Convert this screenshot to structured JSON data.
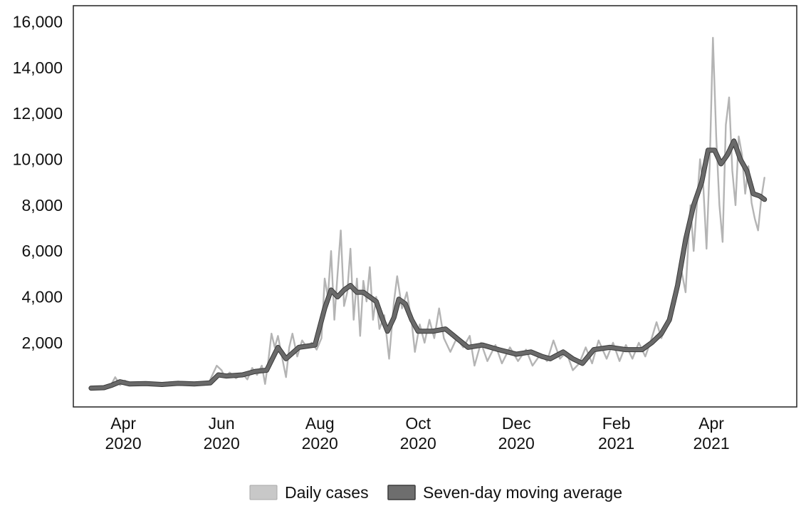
{
  "chart_data": {
    "type": "line",
    "title": "",
    "xlabel": "",
    "ylabel": "",
    "x_ticks": [
      {
        "date": "2020-04-01",
        "line1": "Apr",
        "line2": "2020"
      },
      {
        "date": "2020-06-01",
        "line1": "Jun",
        "line2": "2020"
      },
      {
        "date": "2020-08-01",
        "line1": "Aug",
        "line2": "2020"
      },
      {
        "date": "2020-10-01",
        "line1": "Oct",
        "line2": "2020"
      },
      {
        "date": "2020-12-01",
        "line1": "Dec",
        "line2": "2020"
      },
      {
        "date": "2021-02-01",
        "line1": "Feb",
        "line2": "2021"
      },
      {
        "date": "2021-04-01",
        "line1": "Apr",
        "line2": "2021"
      }
    ],
    "y_ticks": [
      {
        "value": 2000,
        "label": "2,000"
      },
      {
        "value": 4000,
        "label": "4,000"
      },
      {
        "value": 6000,
        "label": "6,000"
      },
      {
        "value": 8000,
        "label": "8,000"
      },
      {
        "value": 10000,
        "label": "10,000"
      },
      {
        "value": 12000,
        "label": "12,000"
      },
      {
        "value": 14000,
        "label": "14,000"
      },
      {
        "value": 16000,
        "label": "16,000"
      }
    ],
    "xlim": [
      "2020-03-01",
      "2021-05-24"
    ],
    "ylim": [
      -800,
      16700
    ],
    "grid": false,
    "legend_position": "bottom",
    "series": [
      {
        "name": "Daily cases",
        "color": "#b4b4b4",
        "points": [
          [
            "2020-03-12",
            10
          ],
          [
            "2020-03-18",
            30
          ],
          [
            "2020-03-24",
            100
          ],
          [
            "2020-03-27",
            500
          ],
          [
            "2020-03-30",
            150
          ],
          [
            "2020-04-02",
            350
          ],
          [
            "2020-04-05",
            200
          ],
          [
            "2020-04-10",
            280
          ],
          [
            "2020-04-18",
            250
          ],
          [
            "2020-04-26",
            250
          ],
          [
            "2020-05-05",
            300
          ],
          [
            "2020-05-15",
            280
          ],
          [
            "2020-05-24",
            250
          ],
          [
            "2020-05-29",
            1000
          ],
          [
            "2020-06-01",
            800
          ],
          [
            "2020-06-03",
            500
          ],
          [
            "2020-06-06",
            700
          ],
          [
            "2020-06-10",
            450
          ],
          [
            "2020-06-14",
            650
          ],
          [
            "2020-06-17",
            400
          ],
          [
            "2020-06-20",
            900
          ],
          [
            "2020-06-23",
            600
          ],
          [
            "2020-06-26",
            1000
          ],
          [
            "2020-06-28",
            200
          ],
          [
            "2020-06-30",
            1200
          ],
          [
            "2020-07-02",
            2400
          ],
          [
            "2020-07-04",
            1800
          ],
          [
            "2020-07-06",
            2300
          ],
          [
            "2020-07-09",
            1200
          ],
          [
            "2020-07-11",
            500
          ],
          [
            "2020-07-13",
            1800
          ],
          [
            "2020-07-15",
            2400
          ],
          [
            "2020-07-18",
            1400
          ],
          [
            "2020-07-21",
            2100
          ],
          [
            "2020-07-24",
            1800
          ],
          [
            "2020-07-27",
            2000
          ],
          [
            "2020-07-30",
            1700
          ],
          [
            "2020-08-02",
            2200
          ],
          [
            "2020-08-04",
            4800
          ],
          [
            "2020-08-06",
            4000
          ],
          [
            "2020-08-08",
            6000
          ],
          [
            "2020-08-10",
            3000
          ],
          [
            "2020-08-12",
            5000
          ],
          [
            "2020-08-14",
            6900
          ],
          [
            "2020-08-16",
            3600
          ],
          [
            "2020-08-18",
            4200
          ],
          [
            "2020-08-20",
            6100
          ],
          [
            "2020-08-22",
            3000
          ],
          [
            "2020-08-24",
            4800
          ],
          [
            "2020-08-26",
            2300
          ],
          [
            "2020-08-28",
            4700
          ],
          [
            "2020-08-30",
            3800
          ],
          [
            "2020-09-01",
            5300
          ],
          [
            "2020-09-03",
            3000
          ],
          [
            "2020-09-05",
            4000
          ],
          [
            "2020-09-07",
            2600
          ],
          [
            "2020-09-10",
            3200
          ],
          [
            "2020-09-13",
            1300
          ],
          [
            "2020-09-16",
            3800
          ],
          [
            "2020-09-18",
            4900
          ],
          [
            "2020-09-21",
            3500
          ],
          [
            "2020-09-24",
            4200
          ],
          [
            "2020-09-27",
            2900
          ],
          [
            "2020-09-29",
            1600
          ],
          [
            "2020-10-02",
            2800
          ],
          [
            "2020-10-05",
            2000
          ],
          [
            "2020-10-08",
            3000
          ],
          [
            "2020-10-11",
            2200
          ],
          [
            "2020-10-14",
            3500
          ],
          [
            "2020-10-17",
            2200
          ],
          [
            "2020-10-21",
            1600
          ],
          [
            "2020-10-25",
            2200
          ],
          [
            "2020-10-29",
            1800
          ],
          [
            "2020-11-02",
            2300
          ],
          [
            "2020-11-05",
            1000
          ],
          [
            "2020-11-09",
            2000
          ],
          [
            "2020-11-13",
            1200
          ],
          [
            "2020-11-18",
            1900
          ],
          [
            "2020-11-22",
            1100
          ],
          [
            "2020-11-27",
            1800
          ],
          [
            "2020-12-02",
            1200
          ],
          [
            "2020-12-07",
            1700
          ],
          [
            "2020-12-11",
            1000
          ],
          [
            "2020-12-16",
            1500
          ],
          [
            "2020-12-20",
            1200
          ],
          [
            "2020-12-24",
            2100
          ],
          [
            "2020-12-28",
            1300
          ],
          [
            "2021-01-01",
            1600
          ],
          [
            "2021-01-05",
            800
          ],
          [
            "2021-01-09",
            1100
          ],
          [
            "2021-01-13",
            1800
          ],
          [
            "2021-01-17",
            1100
          ],
          [
            "2021-01-21",
            2100
          ],
          [
            "2021-01-26",
            1300
          ],
          [
            "2021-01-30",
            2000
          ],
          [
            "2021-02-03",
            1200
          ],
          [
            "2021-02-07",
            1900
          ],
          [
            "2021-02-11",
            1300
          ],
          [
            "2021-02-15",
            2000
          ],
          [
            "2021-02-19",
            1400
          ],
          [
            "2021-02-23",
            2200
          ],
          [
            "2021-02-26",
            2900
          ],
          [
            "2021-03-01",
            2200
          ],
          [
            "2021-03-04",
            2800
          ],
          [
            "2021-03-07",
            3500
          ],
          [
            "2021-03-10",
            4500
          ],
          [
            "2021-03-13",
            5300
          ],
          [
            "2021-03-16",
            4200
          ],
          [
            "2021-03-19",
            8000
          ],
          [
            "2021-03-21",
            6000
          ],
          [
            "2021-03-23",
            8000
          ],
          [
            "2021-03-25",
            10000
          ],
          [
            "2021-03-27",
            8800
          ],
          [
            "2021-03-29",
            6100
          ],
          [
            "2021-03-31",
            9800
          ],
          [
            "2021-04-02",
            15300
          ],
          [
            "2021-04-04",
            11000
          ],
          [
            "2021-04-06",
            8000
          ],
          [
            "2021-04-08",
            6400
          ],
          [
            "2021-04-10",
            11500
          ],
          [
            "2021-04-12",
            12700
          ],
          [
            "2021-04-14",
            9500
          ],
          [
            "2021-04-16",
            8000
          ],
          [
            "2021-04-18",
            11000
          ],
          [
            "2021-04-20",
            10200
          ],
          [
            "2021-04-22",
            8500
          ],
          [
            "2021-04-24",
            9700
          ],
          [
            "2021-04-26",
            8100
          ],
          [
            "2021-04-28",
            7400
          ],
          [
            "2021-04-30",
            6900
          ],
          [
            "2021-05-02",
            8300
          ],
          [
            "2021-05-04",
            9200
          ]
        ]
      },
      {
        "name": "Seven-day moving average",
        "color": "#6a6a6a",
        "points": [
          [
            "2020-03-12",
            20
          ],
          [
            "2020-03-20",
            40
          ],
          [
            "2020-03-25",
            150
          ],
          [
            "2020-03-30",
            300
          ],
          [
            "2020-04-05",
            200
          ],
          [
            "2020-04-15",
            220
          ],
          [
            "2020-04-25",
            180
          ],
          [
            "2020-05-05",
            230
          ],
          [
            "2020-05-15",
            200
          ],
          [
            "2020-05-25",
            250
          ],
          [
            "2020-05-30",
            600
          ],
          [
            "2020-06-04",
            550
          ],
          [
            "2020-06-14",
            600
          ],
          [
            "2020-06-22",
            750
          ],
          [
            "2020-06-29",
            800
          ],
          [
            "2020-07-06",
            1800
          ],
          [
            "2020-07-11",
            1300
          ],
          [
            "2020-07-19",
            1800
          ],
          [
            "2020-07-29",
            1900
          ],
          [
            "2020-08-04",
            3500
          ],
          [
            "2020-08-08",
            4300
          ],
          [
            "2020-08-12",
            4000
          ],
          [
            "2020-08-16",
            4300
          ],
          [
            "2020-08-20",
            4500
          ],
          [
            "2020-08-24",
            4200
          ],
          [
            "2020-08-28",
            4200
          ],
          [
            "2020-09-01",
            4000
          ],
          [
            "2020-09-05",
            3800
          ],
          [
            "2020-09-09",
            3000
          ],
          [
            "2020-09-12",
            2500
          ],
          [
            "2020-09-16",
            3100
          ],
          [
            "2020-09-19",
            3900
          ],
          [
            "2020-09-23",
            3700
          ],
          [
            "2020-09-27",
            3000
          ],
          [
            "2020-10-01",
            2500
          ],
          [
            "2020-10-10",
            2500
          ],
          [
            "2020-10-18",
            2600
          ],
          [
            "2020-10-25",
            2200
          ],
          [
            "2020-11-01",
            1800
          ],
          [
            "2020-11-10",
            1900
          ],
          [
            "2020-11-20",
            1700
          ],
          [
            "2020-12-01",
            1500
          ],
          [
            "2020-12-10",
            1600
          ],
          [
            "2020-12-17",
            1400
          ],
          [
            "2020-12-22",
            1300
          ],
          [
            "2020-12-30",
            1600
          ],
          [
            "2021-01-05",
            1300
          ],
          [
            "2021-01-11",
            1100
          ],
          [
            "2021-01-18",
            1700
          ],
          [
            "2021-01-28",
            1800
          ],
          [
            "2021-02-07",
            1700
          ],
          [
            "2021-02-17",
            1700
          ],
          [
            "2021-02-23",
            2000
          ],
          [
            "2021-03-01",
            2400
          ],
          [
            "2021-03-06",
            3000
          ],
          [
            "2021-03-11",
            4500
          ],
          [
            "2021-03-16",
            6500
          ],
          [
            "2021-03-21",
            8000
          ],
          [
            "2021-03-26",
            9000
          ],
          [
            "2021-03-30",
            10400
          ],
          [
            "2021-04-03",
            10400
          ],
          [
            "2021-04-07",
            9800
          ],
          [
            "2021-04-11",
            10200
          ],
          [
            "2021-04-15",
            10800
          ],
          [
            "2021-04-19",
            10000
          ],
          [
            "2021-04-23",
            9500
          ],
          [
            "2021-04-27",
            8500
          ],
          [
            "2021-05-01",
            8400
          ],
          [
            "2021-05-04",
            8250
          ]
        ]
      }
    ]
  },
  "legend": {
    "items": [
      {
        "label": "Daily cases",
        "color": "#b4b4b4"
      },
      {
        "label": "Seven-day moving average",
        "color": "#6a6a6a"
      }
    ]
  }
}
